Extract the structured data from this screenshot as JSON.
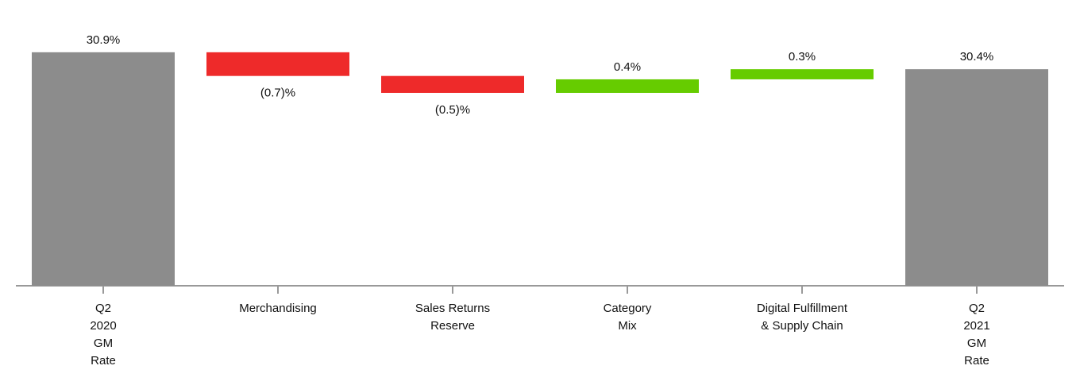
{
  "chart_data": {
    "type": "waterfall",
    "categories": [
      [
        "Q2",
        "2020",
        "GM",
        "Rate"
      ],
      [
        "Merchandising"
      ],
      [
        "Sales Returns",
        "Reserve"
      ],
      [
        "Category",
        "Mix"
      ],
      [
        "Digital Fulfillment",
        "& Supply Chain"
      ],
      [
        "Q2",
        "2021",
        "GM",
        "Rate"
      ]
    ],
    "measure": [
      "total",
      "relative",
      "relative",
      "relative",
      "relative",
      "total"
    ],
    "values": [
      30.9,
      -0.7,
      -0.5,
      0.4,
      0.3,
      30.4
    ],
    "value_labels": [
      "30.9%",
      "(0.7)%",
      "(0.5)%",
      "0.4%",
      "0.3%",
      "30.4%"
    ],
    "total_color": "#8c8c8c",
    "increase_color": "#66cc00",
    "decrease_color": "#ee2a2a",
    "ylim": [
      24,
      31.6
    ]
  }
}
